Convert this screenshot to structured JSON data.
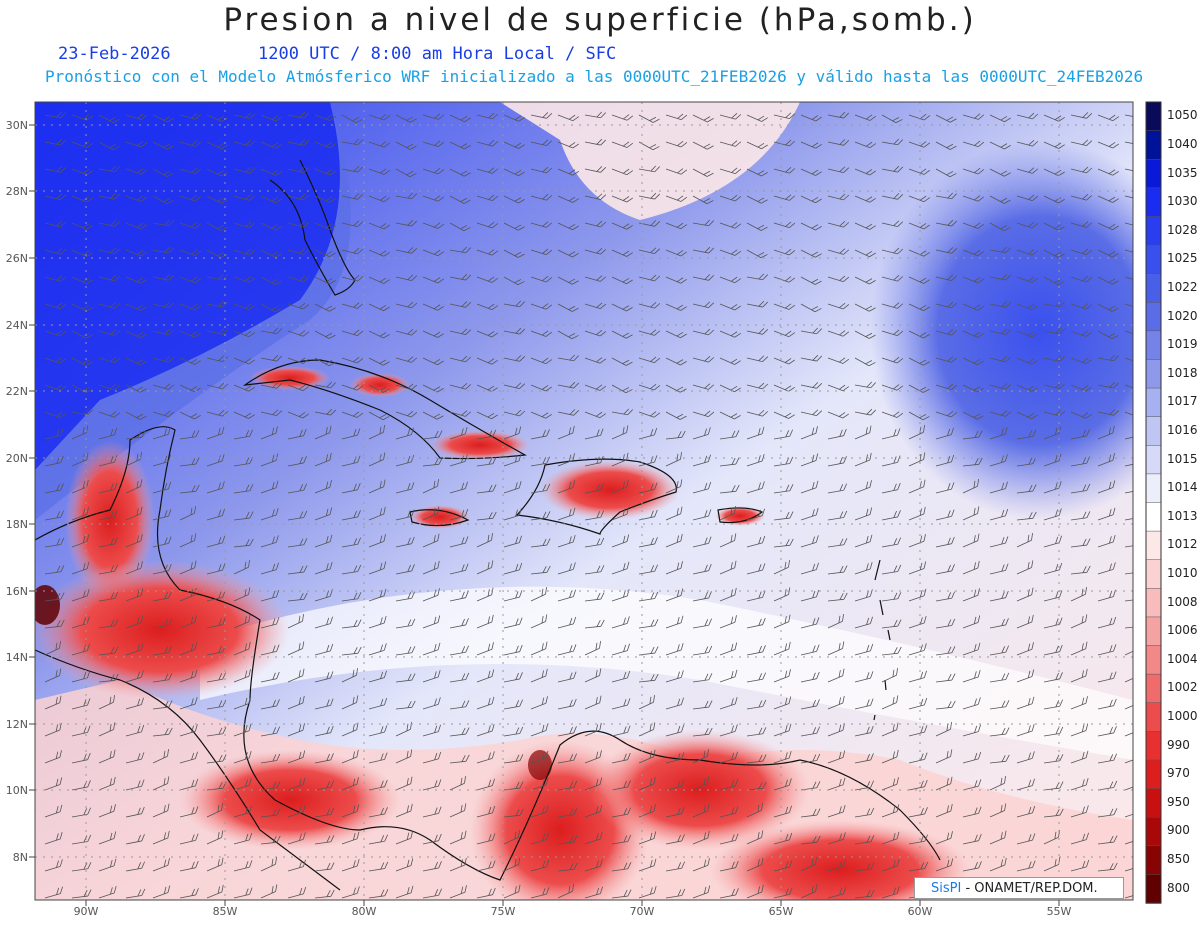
{
  "header": {
    "title": "Presion a nivel de superficie (hPa,somb.)",
    "date": "23-Feb-2026",
    "time_info": "1200 UTC / 8:00 am Hora Local / SFC",
    "forecast_info": "Pronóstico con el Modelo Atmósferico WRF inicializado a las 0000UTC_21FEB2026 y válido hasta las  0000UTC_24FEB2026"
  },
  "axes": {
    "lat_labels": [
      "30N",
      "28N",
      "26N",
      "24N",
      "22N",
      "20N",
      "18N",
      "16N",
      "14N",
      "12N",
      "10N",
      "8N"
    ],
    "lon_labels": [
      "90W",
      "85W",
      "80W",
      "75W",
      "70W",
      "65W",
      "60W",
      "55W"
    ]
  },
  "colorbar": {
    "levels": [
      "1050",
      "1040",
      "1035",
      "1030",
      "1028",
      "1025",
      "1022",
      "1020",
      "1019",
      "1018",
      "1017",
      "1016",
      "1015",
      "1014",
      "1013",
      "1012",
      "1010",
      "1008",
      "1006",
      "1004",
      "1002",
      "1000",
      "990",
      "970",
      "950",
      "900",
      "850",
      "800"
    ],
    "colors": [
      "#0a0a5a",
      "#00129a",
      "#0a18d8",
      "#1a2cf0",
      "#2a3ef0",
      "#3a50ee",
      "#4a5fe8",
      "#5a6de6",
      "#7582e8",
      "#8e99ec",
      "#a7b0f0",
      "#c0c6f4",
      "#d6daf8",
      "#eceefb",
      "#ffffff",
      "#fde8e8",
      "#fbd2d2",
      "#f8bcbc",
      "#f5a2a2",
      "#f28888",
      "#f06c6c",
      "#ed4c4c",
      "#e83030",
      "#dc1e1e",
      "#c81010",
      "#a80808",
      "#880404",
      "#600000"
    ]
  },
  "credit": {
    "logo": "SisPI",
    "text": " - ONAMET/REP.DOM."
  }
}
